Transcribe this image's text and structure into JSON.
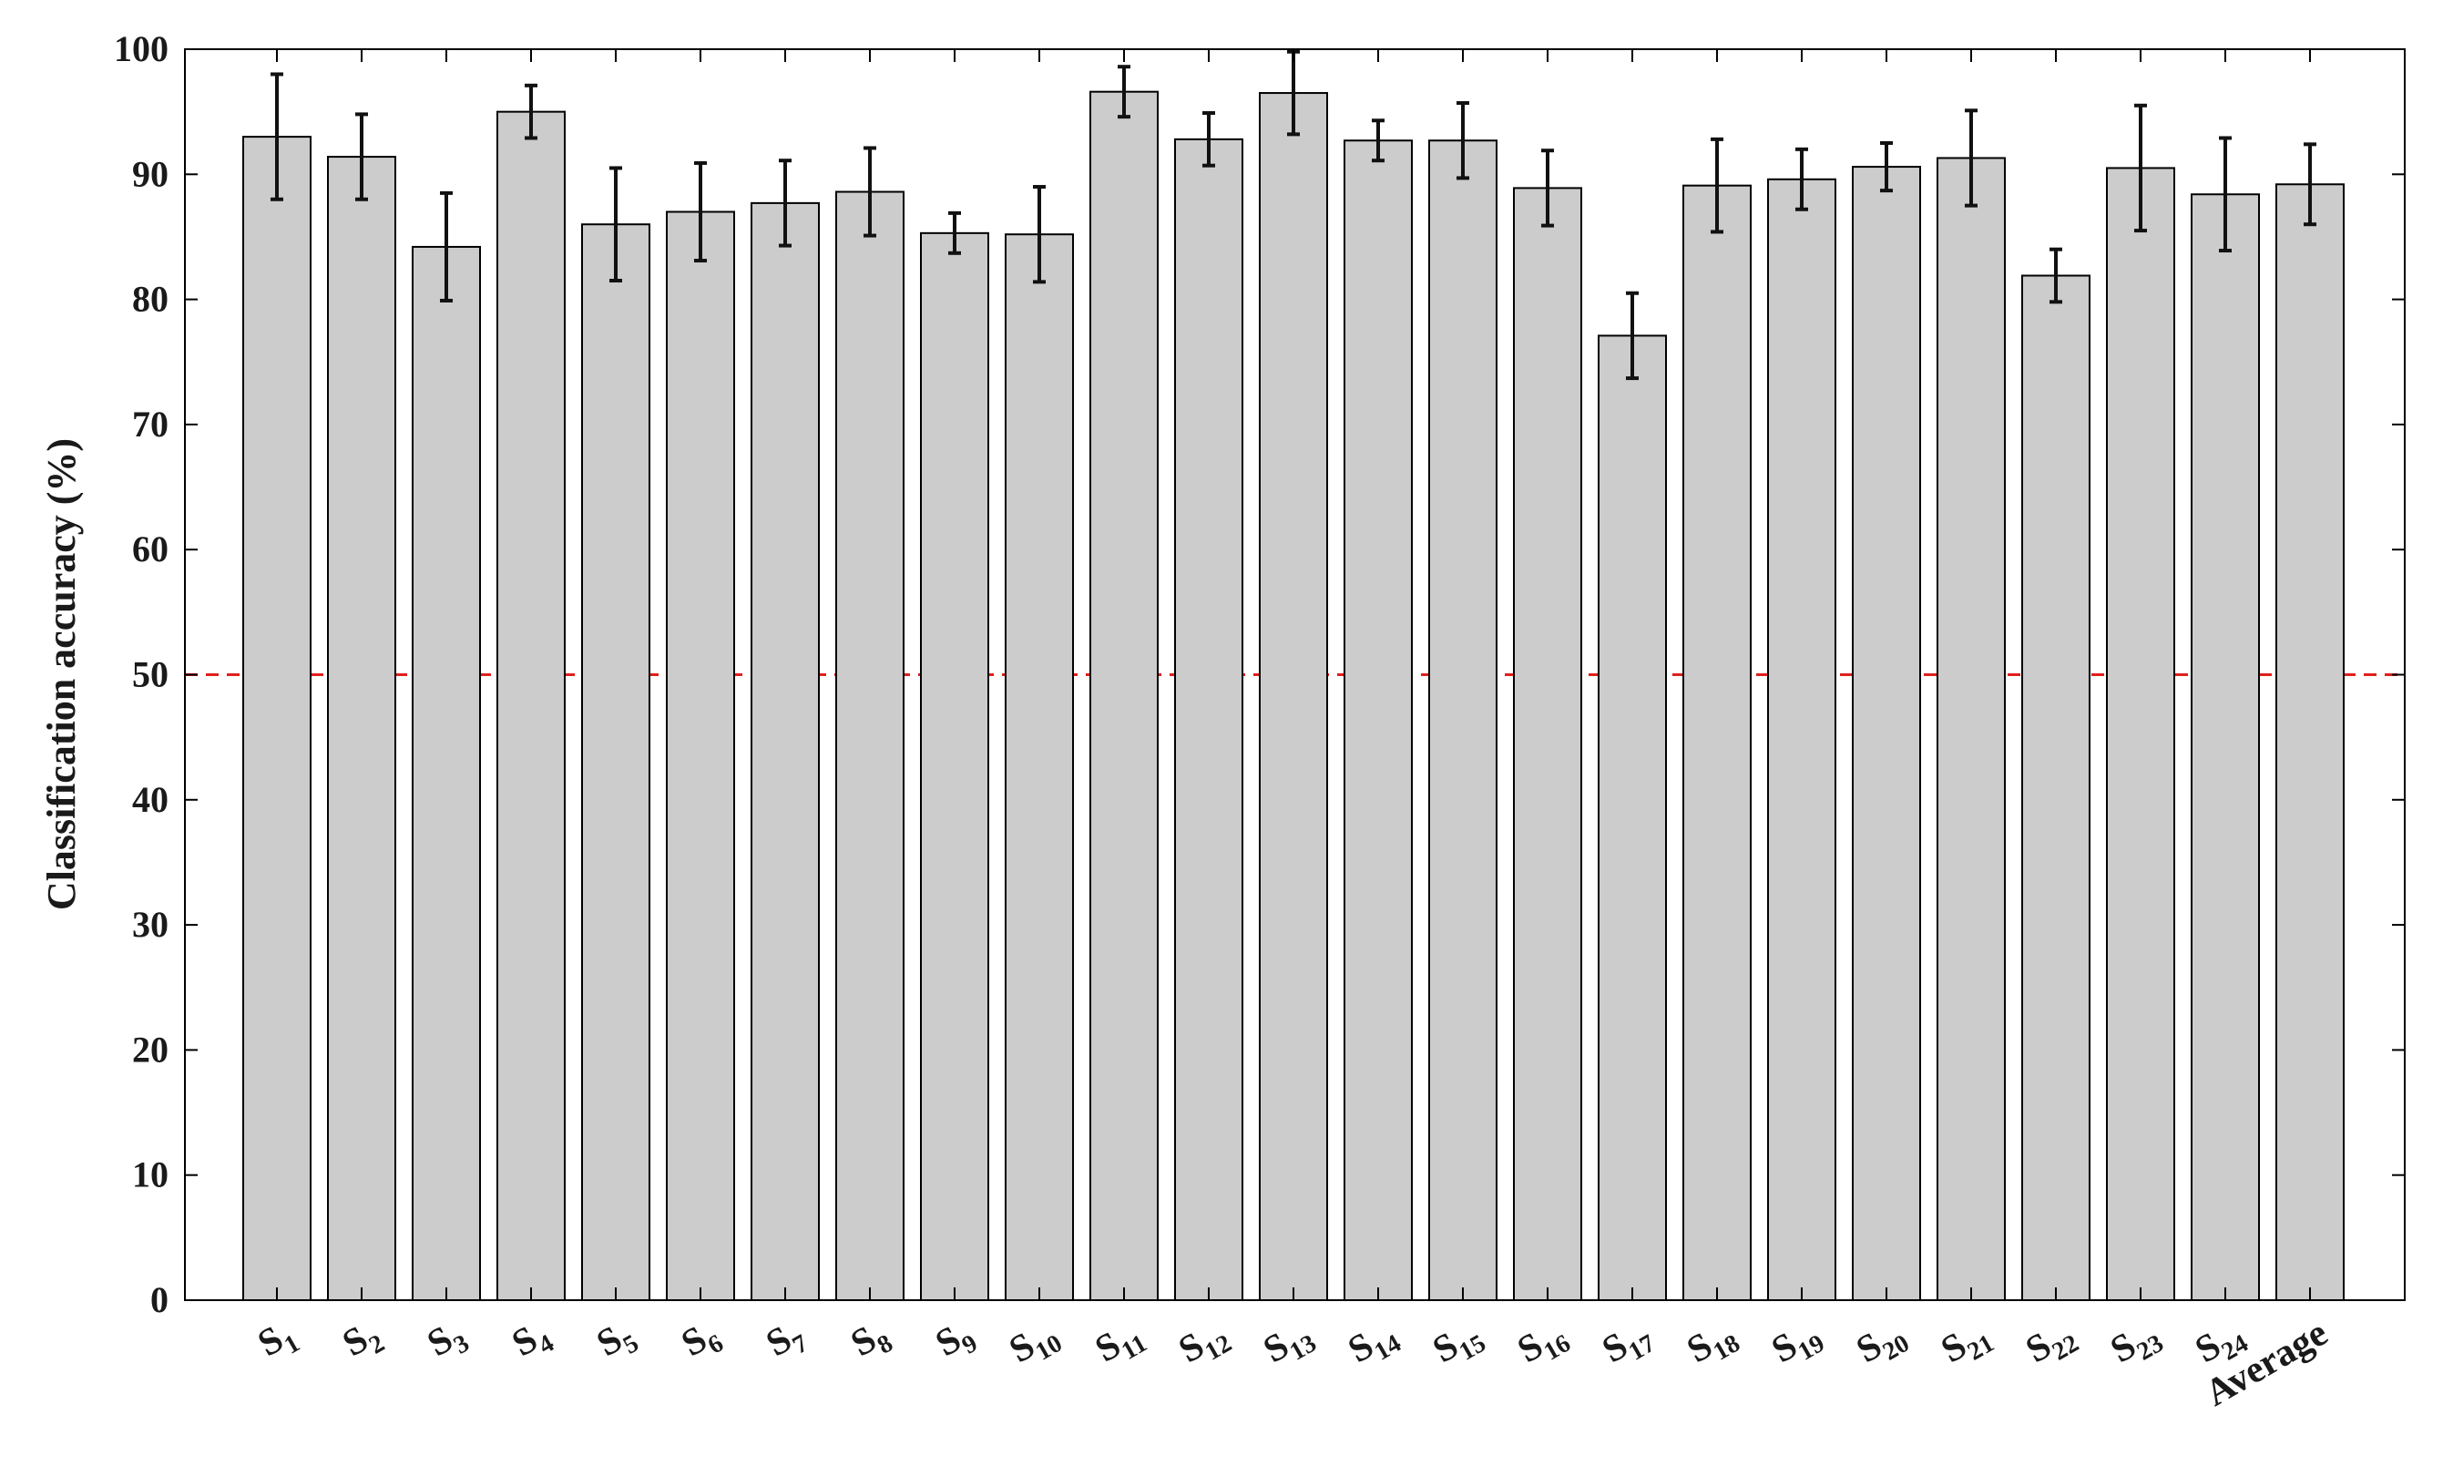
{
  "chart_data": {
    "type": "bar",
    "title": "",
    "xlabel": "",
    "ylabel": "Classification accuracy (%)",
    "ylim": [
      0,
      100
    ],
    "yticks": [
      0,
      10,
      20,
      30,
      40,
      50,
      60,
      70,
      80,
      90,
      100
    ],
    "grid": false,
    "categories": [
      {
        "base": "S",
        "sub": "1"
      },
      {
        "base": "S",
        "sub": "2"
      },
      {
        "base": "S",
        "sub": "3"
      },
      {
        "base": "S",
        "sub": "4"
      },
      {
        "base": "S",
        "sub": "5"
      },
      {
        "base": "S",
        "sub": "6"
      },
      {
        "base": "S",
        "sub": "7"
      },
      {
        "base": "S",
        "sub": "8"
      },
      {
        "base": "S",
        "sub": "9"
      },
      {
        "base": "S",
        "sub": "10"
      },
      {
        "base": "S",
        "sub": "11"
      },
      {
        "base": "S",
        "sub": "12"
      },
      {
        "base": "S",
        "sub": "13"
      },
      {
        "base": "S",
        "sub": "14"
      },
      {
        "base": "S",
        "sub": "15"
      },
      {
        "base": "S",
        "sub": "16"
      },
      {
        "base": "S",
        "sub": "17"
      },
      {
        "base": "S",
        "sub": "18"
      },
      {
        "base": "S",
        "sub": "19"
      },
      {
        "base": "S",
        "sub": "20"
      },
      {
        "base": "S",
        "sub": "21"
      },
      {
        "base": "S",
        "sub": "22"
      },
      {
        "base": "S",
        "sub": "23"
      },
      {
        "base": "S",
        "sub": "24"
      },
      {
        "base": "Average",
        "sub": ""
      }
    ],
    "values": [
      93.0,
      91.4,
      84.2,
      95.0,
      86.0,
      87.0,
      87.7,
      88.6,
      85.3,
      85.2,
      96.6,
      92.8,
      96.5,
      92.7,
      92.7,
      88.9,
      77.1,
      89.1,
      89.6,
      90.6,
      91.3,
      81.9,
      90.5,
      88.4,
      89.2
    ],
    "errors": [
      5.0,
      3.4,
      4.3,
      2.1,
      4.5,
      3.9,
      3.4,
      3.5,
      1.6,
      3.8,
      2.0,
      2.1,
      3.3,
      1.6,
      3.0,
      3.0,
      3.4,
      3.7,
      2.4,
      1.9,
      3.8,
      2.1,
      5.0,
      4.5,
      3.2
    ],
    "reference_line": {
      "y": 50,
      "color": "#e0201c",
      "style": "dashed"
    },
    "colors": {
      "bar_fill": "#cccccc",
      "bar_edge": "#000000",
      "error_bar": "#111111",
      "axis": "#000000"
    }
  }
}
